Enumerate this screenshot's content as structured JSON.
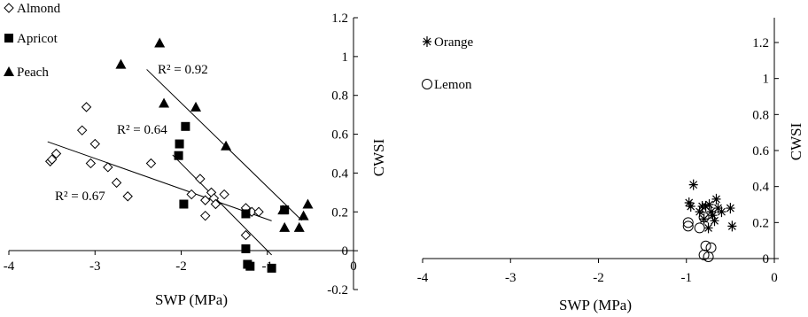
{
  "chart_data": [
    {
      "type": "scatter",
      "title": "",
      "xlabel": "SWP (MPa)",
      "ylabel": "CWSI",
      "xlim": [
        -4,
        0
      ],
      "ylim": [
        -0.2,
        1.2
      ],
      "x_ticks": [
        "-4",
        "-3",
        "-2",
        "-1",
        "0"
      ],
      "y_ticks": [
        "-0.2",
        "0",
        "0.2",
        "0.4",
        "0.6",
        "0.8",
        "1",
        "1.2"
      ],
      "legend_position": "top-left",
      "grid": false,
      "series": [
        {
          "name": "Almond",
          "marker": "diamond-open",
          "points": [
            [
              -3.52,
              0.46
            ],
            [
              -3.5,
              0.47
            ],
            [
              -3.45,
              0.5
            ],
            [
              -3.1,
              0.74
            ],
            [
              -3.15,
              0.62
            ],
            [
              -3.05,
              0.45
            ],
            [
              -3.0,
              0.55
            ],
            [
              -2.85,
              0.43
            ],
            [
              -2.75,
              0.35
            ],
            [
              -2.62,
              0.28
            ],
            [
              -2.35,
              0.45
            ],
            [
              -1.88,
              0.29
            ],
            [
              -1.78,
              0.37
            ],
            [
              -1.72,
              0.26
            ],
            [
              -1.72,
              0.18
            ],
            [
              -1.65,
              0.3
            ],
            [
              -1.62,
              0.27
            ],
            [
              -1.6,
              0.24
            ],
            [
              -1.5,
              0.29
            ],
            [
              -1.25,
              0.08
            ],
            [
              -1.25,
              0.22
            ],
            [
              -1.18,
              0.2
            ],
            [
              -1.1,
              0.2
            ]
          ],
          "trend_r2": "R² = 0.67"
        },
        {
          "name": "Apricot",
          "marker": "square-filled",
          "points": [
            [
              -1.95,
              0.64
            ],
            [
              -2.02,
              0.55
            ],
            [
              -2.03,
              0.49
            ],
            [
              -1.97,
              0.24
            ],
            [
              -1.25,
              0.19
            ],
            [
              -1.25,
              0.01
            ],
            [
              -1.23,
              -0.07
            ],
            [
              -1.2,
              -0.08
            ],
            [
              -0.95,
              -0.09
            ],
            [
              -0.8,
              0.21
            ]
          ],
          "trend_r2": "R² = 0.64"
        },
        {
          "name": "Peach",
          "marker": "triangle-filled",
          "points": [
            [
              -2.25,
              1.07
            ],
            [
              -2.7,
              0.96
            ],
            [
              -2.2,
              0.76
            ],
            [
              -1.83,
              0.74
            ],
            [
              -1.48,
              0.54
            ],
            [
              -0.82,
              0.21
            ],
            [
              -0.8,
              0.12
            ],
            [
              -0.63,
              0.12
            ],
            [
              -0.58,
              0.18
            ],
            [
              -0.53,
              0.24
            ]
          ],
          "trend_r2": "R² = 0.92"
        }
      ]
    },
    {
      "type": "scatter",
      "title": "",
      "xlabel": "SWP (MPa)",
      "ylabel": "CWSI",
      "xlim": [
        -4,
        0
      ],
      "ylim": [
        0,
        1.2
      ],
      "x_ticks": [
        "-4",
        "-3",
        "-2",
        "-1",
        "0"
      ],
      "y_ticks": [
        "0",
        "0.2",
        "0.4",
        "0.6",
        "0.8",
        "1",
        "1.2"
      ],
      "legend_position": "top-left",
      "grid": false,
      "series": [
        {
          "name": "Orange",
          "marker": "asterisk",
          "points": [
            [
              -0.92,
              0.41
            ],
            [
              -0.97,
              0.31
            ],
            [
              -0.95,
              0.29
            ],
            [
              -0.85,
              0.26
            ],
            [
              -0.82,
              0.29
            ],
            [
              -0.8,
              0.22
            ],
            [
              -0.78,
              0.29
            ],
            [
              -0.75,
              0.17
            ],
            [
              -0.74,
              0.3
            ],
            [
              -0.72,
              0.26
            ],
            [
              -0.7,
              0.24
            ],
            [
              -0.68,
              0.21
            ],
            [
              -0.66,
              0.33
            ],
            [
              -0.64,
              0.28
            ],
            [
              -0.6,
              0.26
            ],
            [
              -0.5,
              0.28
            ],
            [
              -0.48,
              0.18
            ]
          ]
        },
        {
          "name": "Lemon",
          "marker": "circle-open",
          "points": [
            [
              -0.98,
              0.2
            ],
            [
              -0.98,
              0.18
            ],
            [
              -0.85,
              0.17
            ],
            [
              -0.8,
              0.23
            ],
            [
              -0.78,
              0.07
            ],
            [
              -0.8,
              0.02
            ],
            [
              -0.75,
              0.01
            ],
            [
              -0.72,
              0.06
            ]
          ]
        }
      ]
    }
  ]
}
